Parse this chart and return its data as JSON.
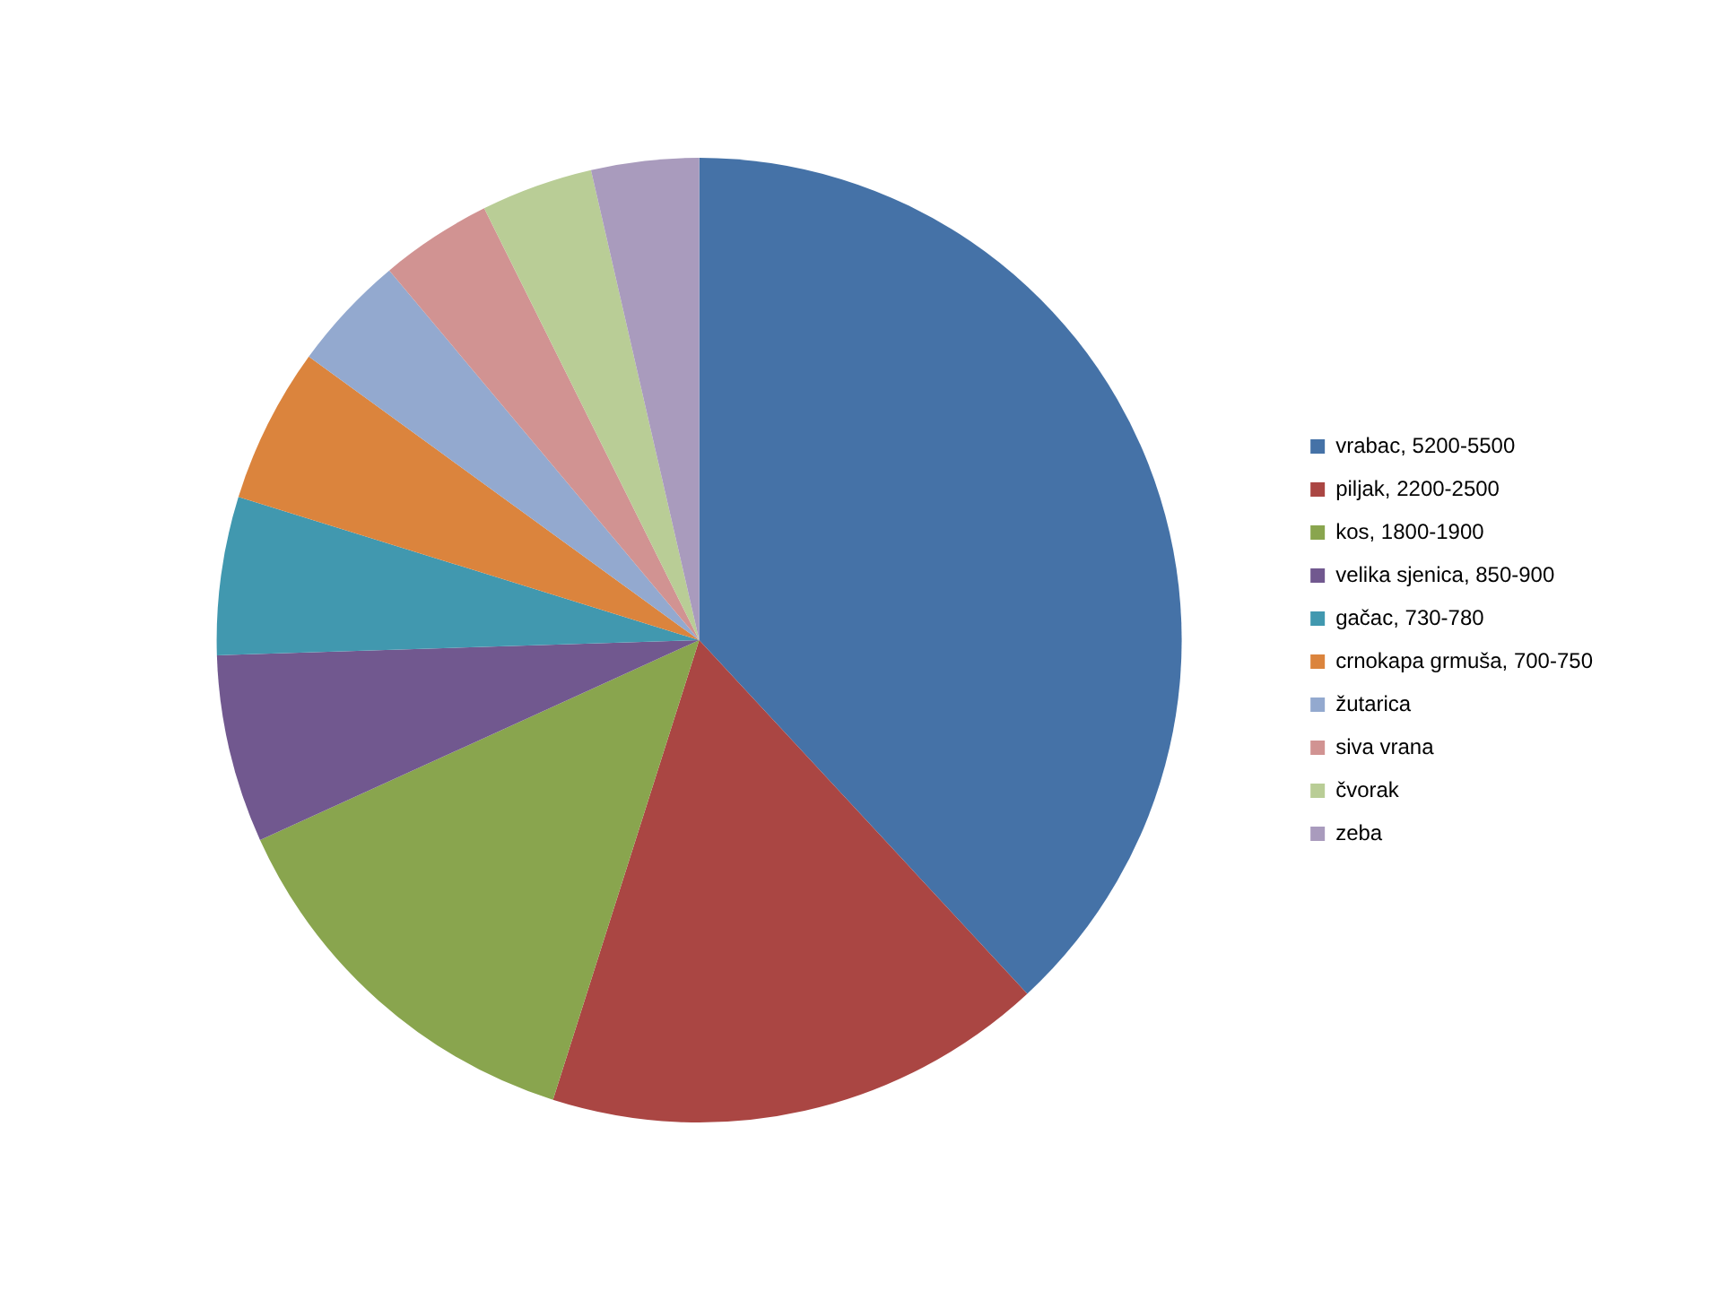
{
  "chart_data": {
    "type": "pie",
    "legend": "right",
    "categories": [
      "vrabac, 5200-5500",
      "piljak, 2200-2500",
      "kos, 1800-1900",
      "velika sjenica, 850-900",
      "gačac, 730-780",
      "crnokapa grmuša, 700-750",
      "žutarica",
      "siva vrana",
      "čvorak",
      "zeba"
    ],
    "values": [
      38.1,
      16.8,
      13.3,
      6.3,
      5.3,
      5.2,
      3.9,
      3.75,
      3.75,
      3.6
    ],
    "colors": [
      "#4572a7",
      "#aa4643",
      "#89a54e",
      "#71588f",
      "#4198af",
      "#db843d",
      "#93a9cf",
      "#d19392",
      "#b9cd96",
      "#a99bbd"
    ]
  }
}
